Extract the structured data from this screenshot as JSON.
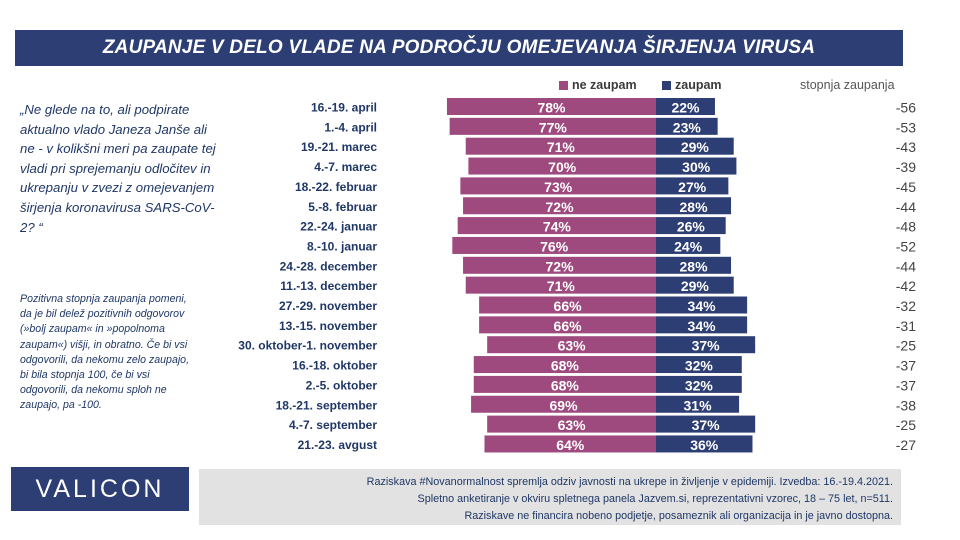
{
  "header": {
    "title": "ZAUPANJE V DELO VLADE NA PODROČJU OMEJEVANJA ŠIRJENJA VIRUSA"
  },
  "legend": {
    "neg_label": "ne zaupam",
    "pos_label": "zaupam",
    "score_label": "stopnja zaupanja"
  },
  "question": "„Ne glede na to, ali podpirate aktualno vlado Janeza Janše ali ne - v kolikšni meri pa zaupate tej vladi pri sprejemanju odločitev in ukrepanju v zvezi z omejevanjem širjenja koronavirusa SARS-CoV-2? “",
  "note": "Pozitivna stopnja zaupanja pomeni, da je bil delež pozitivnih odgovorov (»bolj zaupam« in »popolnoma zaupam«) višji, in obratno. Če bi vsi odgovorili, da nekomu zelo zaupajo, bi bila stopnja 100, če bi vsi odgovorili, da nekomu sploh ne zaupajo, pa -100.",
  "logo": "VALICON",
  "footer": {
    "line1": "Raziskava #Novanormalnost spremlja odziv javnosti na ukrepe in življenje v epidemiji. Izvedba: 16.-19.4.2021.",
    "line2": "Spletno anketiranje v okviru spletnega panela Jazvem.si, reprezentativni vzorec, 18 – 75 let, n=511.",
    "line3": "Raziskave ne financira nobeno podjetje, posameznik ali organizacija in je javno dostopna."
  },
  "chart_data": {
    "type": "bar",
    "orientation": "horizontal-diverging",
    "categories": [
      "16.-19. april",
      "1.-4. april",
      "19.-21. marec",
      "4.-7. marec",
      "18.-22. februar",
      "5.-8. februar",
      "22.-24. januar",
      "8.-10. januar",
      "24.-28. december",
      "11.-13. december",
      "27.-29. november",
      "13.-15. november",
      "30. oktober-1. november",
      "16.-18. oktober",
      "2.-5. oktober",
      "18.-21. september",
      "4.-7. september",
      "21.-23. avgust"
    ],
    "series": [
      {
        "name": "ne zaupam",
        "color": "#9e4a7e",
        "values": [
          78,
          77,
          71,
          70,
          73,
          72,
          74,
          76,
          72,
          71,
          66,
          66,
          63,
          68,
          68,
          69,
          63,
          64
        ]
      },
      {
        "name": "zaupam",
        "color": "#2c3e73",
        "values": [
          22,
          23,
          29,
          30,
          27,
          28,
          26,
          24,
          28,
          29,
          34,
          34,
          37,
          32,
          32,
          31,
          37,
          36
        ]
      }
    ],
    "score": {
      "name": "stopnja zaupanja",
      "values": [
        -56,
        -53,
        -43,
        -39,
        -45,
        -44,
        -48,
        -52,
        -44,
        -42,
        -32,
        -31,
        -25,
        -37,
        -37,
        -38,
        -25,
        -27
      ]
    },
    "value_suffix": "%"
  }
}
